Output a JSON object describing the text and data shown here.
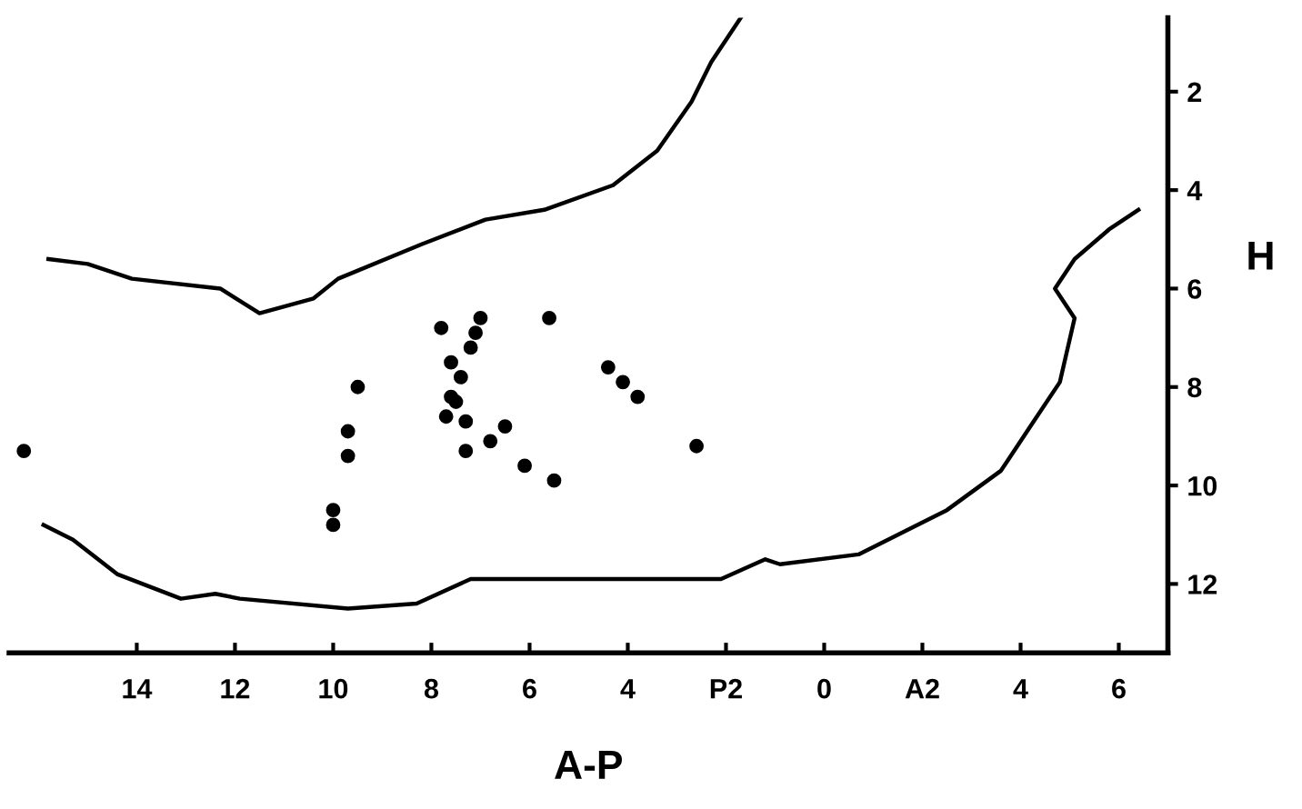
{
  "chart_data": {
    "type": "scatter",
    "xlabel": "A-P",
    "ylabel": "H",
    "xlim": [
      -16.6,
      7.0
    ],
    "ylim": [
      13.4,
      0.5
    ],
    "xticks": [
      {
        "value": -14,
        "label": "14"
      },
      {
        "value": -12,
        "label": "12"
      },
      {
        "value": -10,
        "label": "10"
      },
      {
        "value": -8,
        "label": "8"
      },
      {
        "value": -6,
        "label": "6"
      },
      {
        "value": -4,
        "label": "4"
      },
      {
        "value": -2,
        "label": "P2"
      },
      0,
      {
        "value": 2,
        "label": "A2"
      },
      4,
      6
    ],
    "yticks": [
      2,
      4,
      6,
      8,
      10,
      12
    ],
    "grid": false,
    "legend": false,
    "series": [
      {
        "type": "line",
        "color": "#000000",
        "marker": "none",
        "line_style": "solid",
        "x": [
          -15.8,
          -15.0,
          -14.1,
          -12.3,
          -11.5,
          -10.4,
          -9.9,
          -8.2,
          -6.9,
          -5.7,
          -4.3,
          -3.4,
          -2.7,
          -2.3,
          -1.7
        ],
        "values": [
          5.4,
          5.5,
          5.8,
          6.0,
          6.5,
          6.2,
          5.8,
          5.1,
          4.6,
          4.4,
          3.9,
          3.2,
          2.2,
          1.4,
          0.5
        ]
      },
      {
        "type": "line",
        "color": "#000000",
        "marker": "none",
        "line_style": "solid",
        "x": [
          -15.9,
          -15.3,
          -14.4,
          -13.1,
          -12.4,
          -11.9,
          -9.7,
          -8.3,
          -7.2,
          -5.7,
          -2.7,
          -2.1,
          -1.2,
          -0.9,
          0.7,
          2.5,
          3.6,
          4.2,
          4.8,
          5.1,
          4.7,
          5.1,
          5.8,
          6.4
        ],
        "values": [
          10.8,
          11.1,
          11.8,
          12.3,
          12.2,
          12.3,
          12.5,
          12.4,
          11.9,
          11.9,
          11.9,
          11.9,
          11.5,
          11.6,
          11.4,
          10.5,
          9.7,
          8.8,
          7.9,
          6.6,
          6.0,
          5.4,
          4.8,
          4.4
        ]
      },
      {
        "color": "#000000",
        "marker": "circle",
        "x": [
          -7.8,
          -7.0,
          -7.1,
          -7.2,
          -7.6,
          -7.4,
          -7.6,
          -7.5,
          -7.7,
          -7.3,
          -7.3,
          -6.8,
          -6.5,
          -5.6,
          -4.4,
          -4.1,
          -3.8,
          -9.5,
          -9.7,
          -9.7,
          -6.1,
          -5.5,
          -2.6,
          -16.3,
          -10.0,
          -10.0
        ],
        "values": [
          6.8,
          6.6,
          6.9,
          7.2,
          7.5,
          7.8,
          8.2,
          8.3,
          8.6,
          8.7,
          9.3,
          9.1,
          8.8,
          6.6,
          7.6,
          7.9,
          8.2,
          8.0,
          8.9,
          9.4,
          9.6,
          9.9,
          9.2,
          9.3,
          10.5,
          10.8
        ]
      }
    ]
  }
}
